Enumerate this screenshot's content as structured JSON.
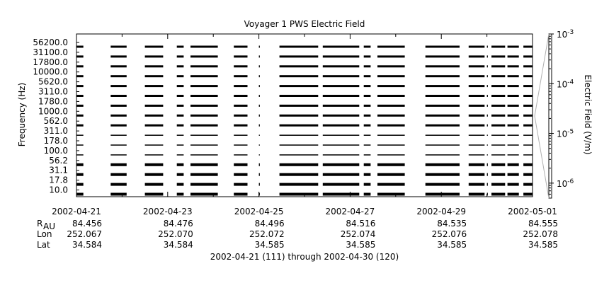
{
  "chart_data": {
    "type": "heatmap",
    "title": "Voyager 1 PWS Electric Field",
    "ylabel": "Frequency (Hz)",
    "colorbar_label": "Electric Field (V/m)",
    "colorbar_scale": "log",
    "colorbar_ticks": [
      {
        "value": 1e-06,
        "base": "10",
        "exp": "-6"
      },
      {
        "value": 1e-05,
        "base": "10",
        "exp": "-5"
      },
      {
        "value": 0.0001,
        "base": "10",
        "exp": "-4"
      },
      {
        "value": 0.001,
        "base": "10",
        "exp": "-3"
      }
    ],
    "colorbar_range": [
      5e-07,
      0.001
    ],
    "frequency_channels": [
      "56200.0",
      "31100.0",
      "17800.0",
      "10000.0",
      "5620.0",
      "3110.0",
      "1780.0",
      "1000.0",
      "562.0",
      "311.0",
      "178.0",
      "100.0",
      "56.2",
      "31.1",
      "17.8",
      "10.0"
    ],
    "x_tick_dates": [
      "2002-04-21",
      "2002-04-23",
      "2002-04-25",
      "2002-04-27",
      "2002-04-29",
      "2002-05-01"
    ],
    "xlim": [
      "2002-04-21",
      "2002-05-01"
    ],
    "ephemeris": {
      "rows": [
        {
          "label": "R",
          "sub": "AU",
          "values": [
            "84.456",
            "84.476",
            "84.496",
            "84.516",
            "84.535",
            "84.555"
          ]
        },
        {
          "label": "Lon",
          "sub": "",
          "values": [
            "252.067",
            "252.070",
            "252.072",
            "252.074",
            "252.076",
            "252.078"
          ]
        },
        {
          "label": "Lat",
          "sub": "",
          "values": [
            "34.584",
            "34.584",
            "34.585",
            "34.585",
            "34.585",
            "34.585"
          ]
        }
      ]
    },
    "date_range_label": "2002-04-21 (111) through 2002-04-30 (120)",
    "data_segments_days": [
      [
        0.0,
        0.15
      ],
      [
        0.75,
        1.1
      ],
      [
        1.5,
        1.9
      ],
      [
        2.2,
        2.35
      ],
      [
        2.5,
        3.1
      ],
      [
        3.45,
        3.75
      ],
      [
        4.0,
        4.02
      ],
      [
        4.45,
        5.3
      ],
      [
        5.4,
        6.2
      ],
      [
        6.3,
        6.45
      ],
      [
        6.6,
        7.2
      ],
      [
        7.65,
        8.4
      ],
      [
        8.6,
        8.95
      ],
      [
        9.0,
        9.02
      ],
      [
        9.1,
        9.4
      ],
      [
        9.45,
        9.7
      ],
      [
        9.8,
        10.0
      ]
    ]
  },
  "colors": {
    "background": "#ffffff",
    "data": "#000000",
    "axis": "#000000",
    "connector": "#b0b0b0"
  }
}
